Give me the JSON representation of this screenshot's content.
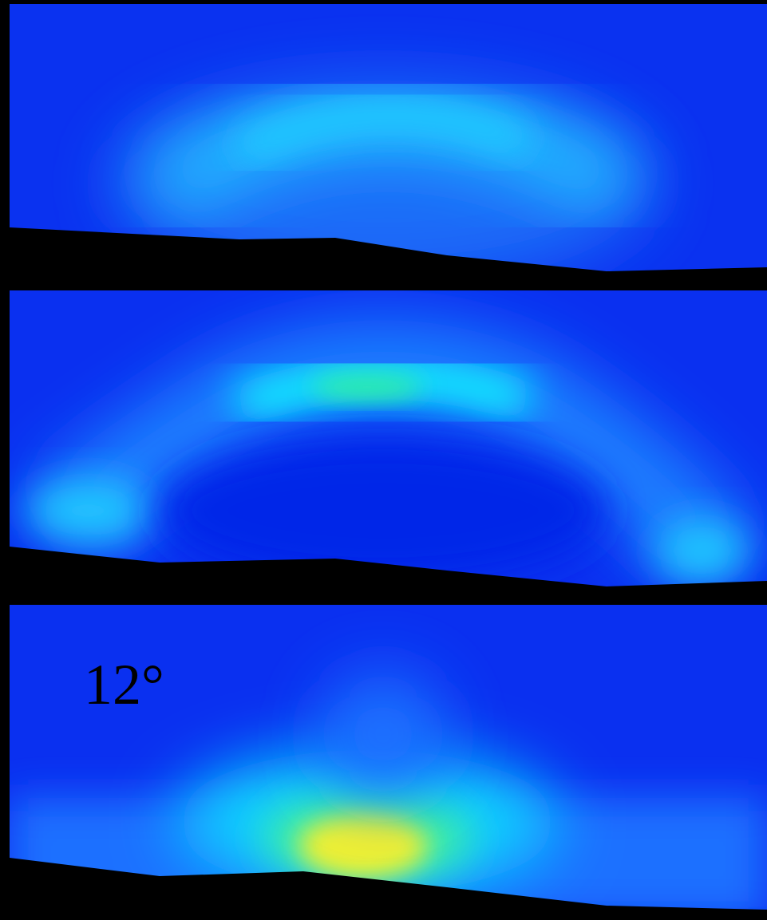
{
  "annotation": "12°"
}
